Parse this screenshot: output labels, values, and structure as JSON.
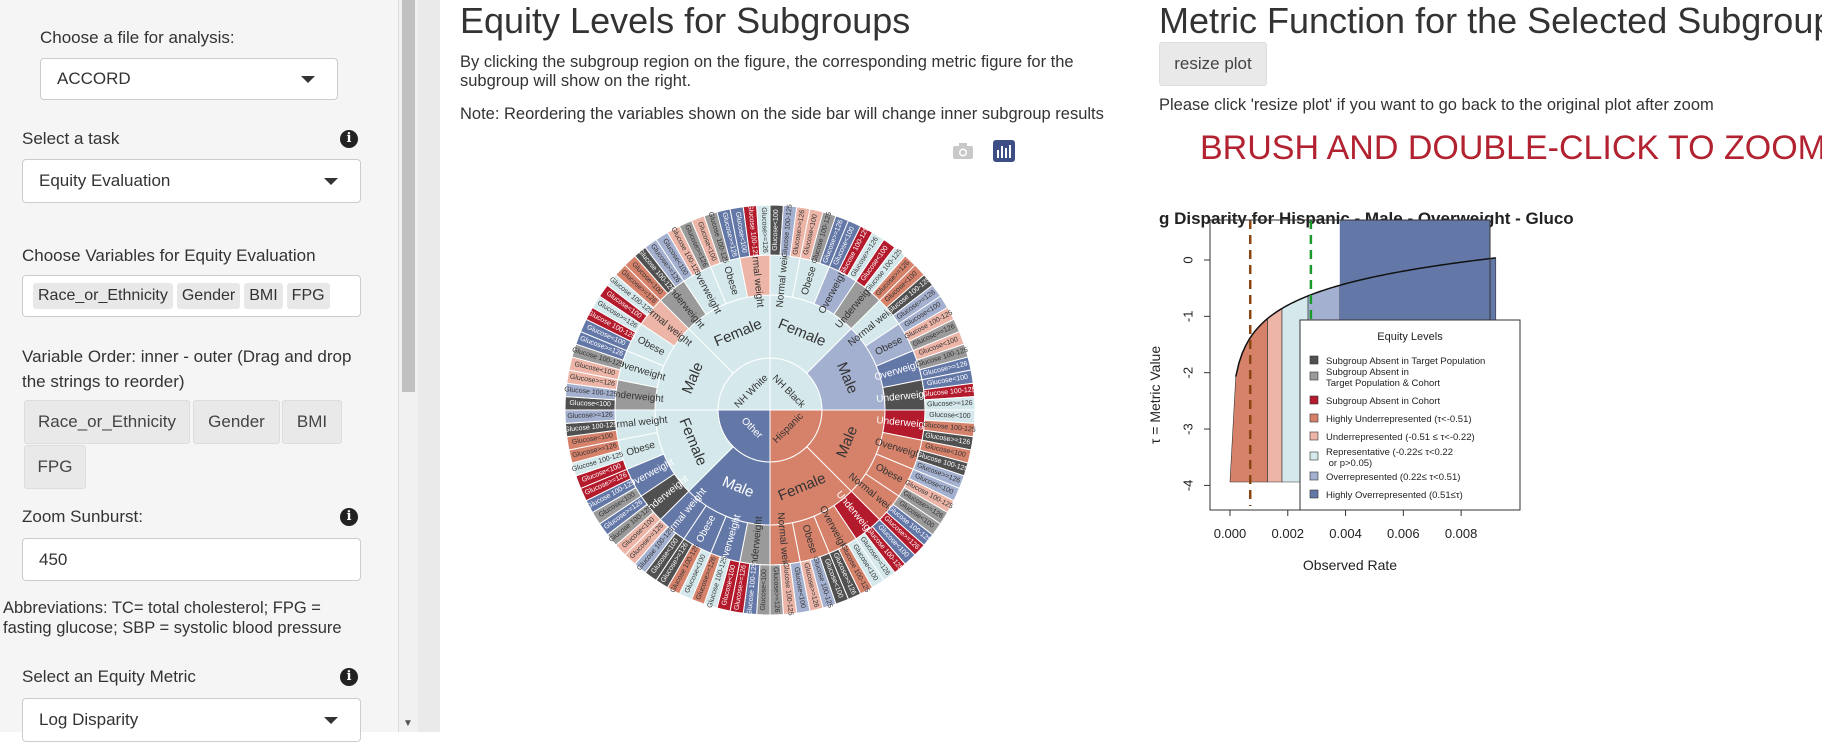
{
  "sidebar": {
    "file_label": "Choose a file for analysis:",
    "file_value": "ACCORD",
    "task_label": "Select a task",
    "task_value": "Equity Evaluation",
    "vars_label": "Choose Variables for Equity Evaluation",
    "vars": [
      "Race_or_Ethnicity",
      "Gender",
      "BMI",
      "FPG"
    ],
    "order_label": "Variable Order: inner - outer (Drag and drop the strings to reorder)",
    "order_items": [
      "Race_or_Ethnicity",
      "Gender",
      "BMI",
      "FPG"
    ],
    "zoom_label": "Zoom Sunburst:",
    "zoom_value": "450",
    "abbrev": "Abbreviations: TC= total cholesterol; FPG = fasting glucose; SBP = systolic blood pressure",
    "metric_label": "Select an Equity Metric",
    "metric_value": "Log Disparity"
  },
  "center": {
    "title": "Equity Levels for Subgroups",
    "desc": "By clicking the subgroup region on the figure, the corresponding metric figure for the subgroup will show on the right.",
    "note": "Note: Reordering the variables shown on the side bar will change inner subgroup results",
    "toolbar_icons": [
      "camera-icon",
      "plotly-icon"
    ]
  },
  "right": {
    "title": "Metric Function for the Selected Subgroup",
    "resize_label": "resize plot",
    "resize_hint": "Please click 'resize plot' if you want to go back to the original plot after zoom",
    "zoom_hint": "BRUSH AND DOUBLE-CLICK TO ZOOM"
  },
  "colors": {
    "deep_red": "#b31b2c",
    "red": "#d6826b",
    "light_red": "#ecb5a7",
    "representative": "#d5e9ec",
    "light_blue": "#a4b0cf",
    "blue": "#6478a8",
    "dark_gray": "#505050",
    "gray": "#9a9a9a"
  },
  "sunburst": {
    "inner": [
      {
        "label": "NH Black",
        "color": "#d5e9ec"
      },
      {
        "label": "Hispanic",
        "color": "#d6826b"
      },
      {
        "label": "Other",
        "color": "#6478a8"
      },
      {
        "label": "NH White",
        "color": "#d5e9ec"
      }
    ],
    "gender": [
      {
        "label": "Female",
        "color": "#d5e9ec"
      },
      {
        "label": "Male",
        "color": "#a4b0cf"
      },
      {
        "label": "Male",
        "color": "#d6826b"
      },
      {
        "label": "Female",
        "color": "#d6826b"
      },
      {
        "label": "Male",
        "color": "#6478a8"
      },
      {
        "label": "Female",
        "color": "#d5e9ec"
      },
      {
        "label": "Male",
        "color": "#d5e9ec"
      },
      {
        "label": "Female",
        "color": "#d5e9ec"
      }
    ],
    "bmi": [
      {
        "label": "Normal weight",
        "color": "#d5e9ec"
      },
      {
        "label": "Obese",
        "color": "#d5e9ec"
      },
      {
        "label": "Overweight",
        "color": "#a4b0cf"
      },
      {
        "label": "Underweight",
        "color": "#9a9a9a"
      },
      {
        "label": "Normal weight",
        "color": "#d5e9ec"
      },
      {
        "label": "Obese",
        "color": "#a4b0cf"
      },
      {
        "label": "Overweight",
        "color": "#6478a8"
      },
      {
        "label": "Underweight",
        "color": "#505050"
      },
      {
        "label": "Underweight",
        "color": "#b31b2c"
      },
      {
        "label": "Overweight",
        "color": "#d6826b"
      },
      {
        "label": "Obese",
        "color": "#d6826b"
      },
      {
        "label": "Normal weight",
        "color": "#d6826b"
      },
      {
        "label": "Underweight",
        "color": "#b31b2c"
      },
      {
        "label": "Overweight",
        "color": "#d6826b"
      },
      {
        "label": "Obese",
        "color": "#d6826b"
      },
      {
        "label": "Normal weight",
        "color": "#d6826b"
      },
      {
        "label": "Underweight",
        "color": "#9a9a9a"
      },
      {
        "label": "Overweight",
        "color": "#6478a8"
      },
      {
        "label": "Obese",
        "color": "#6478a8"
      },
      {
        "label": "Normal weight",
        "color": "#6478a8"
      },
      {
        "label": "Underweight",
        "color": "#505050"
      },
      {
        "label": "Overweight",
        "color": "#6478a8"
      },
      {
        "label": "Obese",
        "color": "#d5e9ec"
      },
      {
        "label": "Normal weight",
        "color": "#d5e9ec"
      },
      {
        "label": "Underweight",
        "color": "#9a9a9a"
      },
      {
        "label": "Overweight",
        "color": "#d5e9ec"
      },
      {
        "label": "Obese",
        "color": "#d5e9ec"
      },
      {
        "label": "Normal weight",
        "color": "#ecb5a7"
      },
      {
        "label": "Underweight",
        "color": "#9a9a9a"
      },
      {
        "label": "Overweight",
        "color": "#d5e9ec"
      },
      {
        "label": "Obese",
        "color": "#d5e9ec"
      },
      {
        "label": "Normal weight",
        "color": "#ecb5a7"
      }
    ],
    "fpg_labels": [
      "Glucose<100",
      "Glucose 100-125",
      "Glucose>=126"
    ],
    "fpg_palette": [
      "#505050",
      "#9a9a9a",
      "#d5e9ec",
      "#a4b0cf",
      "#6478a8",
      "#d6826b",
      "#ecb5a7",
      "#b31b2c"
    ]
  },
  "metric_plot": {
    "title": "g Disparity for Hispanic - Male - Overweight - Gluco",
    "xlabel": "Observed Rate",
    "ylabel": "τ = Metric Value",
    "xticks": [
      "0.000",
      "0.002",
      "0.004",
      "0.006",
      "0.008"
    ],
    "yticks": [
      "0",
      "-1",
      "-2",
      "-3",
      "-4"
    ],
    "legend_title": "Equity Levels",
    "legend": [
      {
        "text": "Subgroup Absent in Target Population",
        "color": "#505050"
      },
      {
        "text": "Subgroup Absent in\nTarget Population & Cohort",
        "color": "#9a9a9a"
      },
      {
        "text": "Subgroup Absent in Cohort",
        "color": "#b31b2c"
      },
      {
        "text": "Highly Underrepresented (τ<-0.51)",
        "color": "#d6826b"
      },
      {
        "text": "Underrepresented (-0.51 ≤ τ<-0.22)",
        "color": "#ecb5a7"
      },
      {
        "text": "Representative (-0.22≤ τ<0.22\n or p>0.05)",
        "color": "#d5e9ec"
      },
      {
        "text": "Overrepresented (0.22≤ τ<0.51)",
        "color": "#a4b0cf"
      },
      {
        "text": "Highly Overrepresented (0.51≤τ)",
        "color": "#6478a8"
      }
    ]
  }
}
